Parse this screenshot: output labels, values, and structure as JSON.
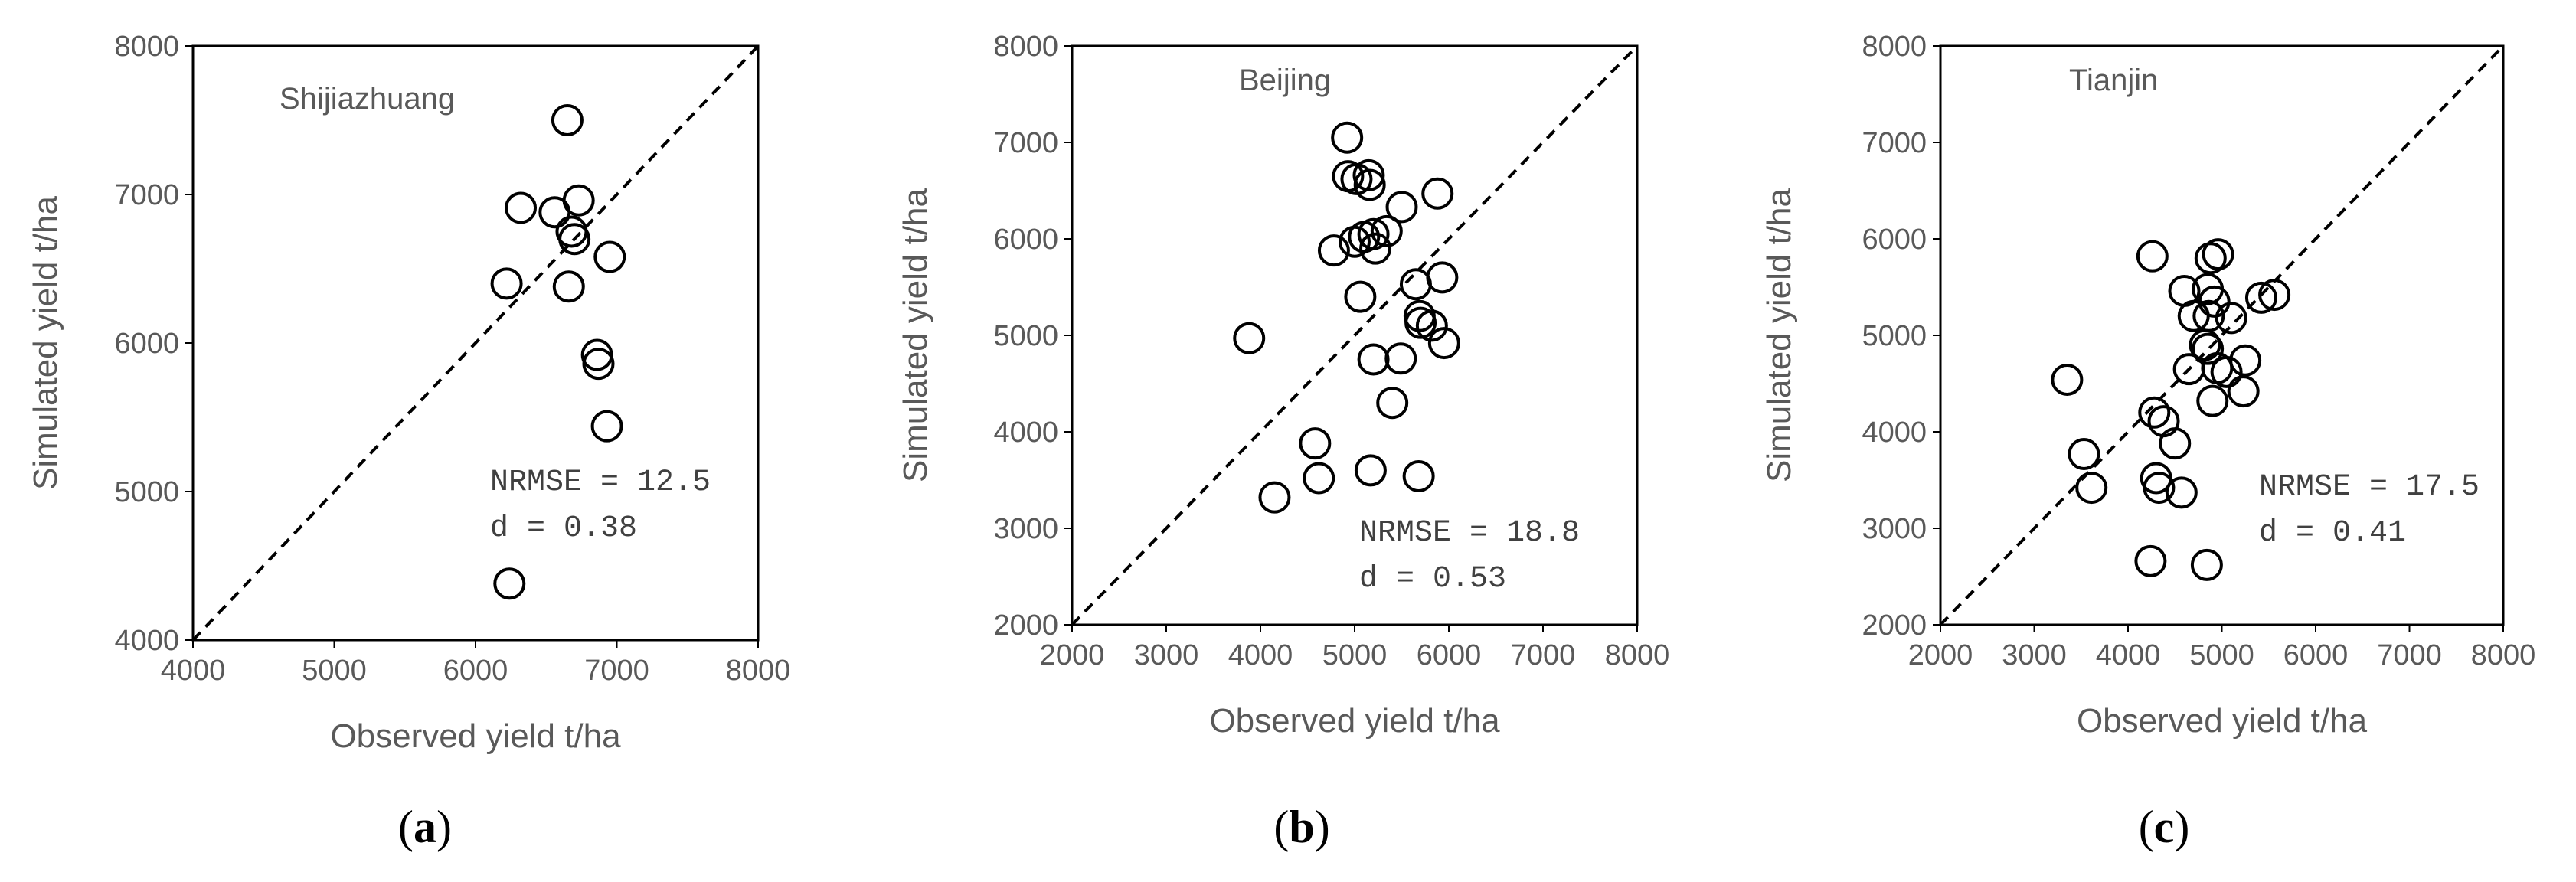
{
  "chart_data": [
    {
      "type": "scatter",
      "panel": "(a)",
      "letter": "a",
      "site": "Shijiazhuang",
      "xlabel": "Observed yield t/ha",
      "ylabel": "Simulated yield t/ha",
      "xlim": [
        4000,
        8000
      ],
      "ylim": [
        4000,
        8000
      ],
      "xticks": [
        4000,
        5000,
        6000,
        7000,
        8000
      ],
      "yticks": [
        4000,
        5000,
        6000,
        7000,
        8000
      ],
      "x_tick_labels": [
        "4000",
        "5000",
        "6000",
        "7000",
        "8000"
      ],
      "y_tick_labels": [
        "4000",
        "5000",
        "6000",
        "7000",
        "8000"
      ],
      "stats": [
        "NRMSE = 12.5",
        "d = 0.38"
      ],
      "grid": false,
      "reference_line": "1:1 dashed",
      "points": [
        {
          "x": 6650,
          "y": 7500
        },
        {
          "x": 6320,
          "y": 6910
        },
        {
          "x": 6560,
          "y": 6880
        },
        {
          "x": 6730,
          "y": 6960
        },
        {
          "x": 6680,
          "y": 6750
        },
        {
          "x": 6700,
          "y": 6700
        },
        {
          "x": 6950,
          "y": 6580
        },
        {
          "x": 6220,
          "y": 6400
        },
        {
          "x": 6660,
          "y": 6380
        },
        {
          "x": 6860,
          "y": 5920
        },
        {
          "x": 6870,
          "y": 5860
        },
        {
          "x": 6930,
          "y": 5440
        },
        {
          "x": 6240,
          "y": 4380
        }
      ]
    },
    {
      "type": "scatter",
      "panel": "(b)",
      "letter": "b",
      "site": "Beijing",
      "xlabel": "Observed yield t/ha",
      "ylabel": "Simulated yield t/ha",
      "xlim": [
        2000,
        8000
      ],
      "ylim": [
        2000,
        8000
      ],
      "xticks": [
        2000,
        3000,
        4000,
        5000,
        6000,
        7000,
        8000
      ],
      "yticks": [
        2000,
        3000,
        4000,
        5000,
        6000,
        7000,
        8000
      ],
      "x_tick_labels": [
        "2000",
        "3000",
        "4000",
        "5000",
        "6000",
        "7000",
        "8000"
      ],
      "y_tick_labels": [
        "2000",
        "3000",
        "4000",
        "5000",
        "6000",
        "7000",
        "8000"
      ],
      "stats": [
        "NRMSE = 18.8",
        "d = 0.53"
      ],
      "grid": false,
      "reference_line": "1:1 dashed",
      "points": [
        {
          "x": 4920,
          "y": 7050
        },
        {
          "x": 4930,
          "y": 6650
        },
        {
          "x": 5020,
          "y": 6620
        },
        {
          "x": 5150,
          "y": 6660
        },
        {
          "x": 5160,
          "y": 6560
        },
        {
          "x": 5880,
          "y": 6470
        },
        {
          "x": 5500,
          "y": 6330
        },
        {
          "x": 5340,
          "y": 6080
        },
        {
          "x": 5000,
          "y": 5970
        },
        {
          "x": 5100,
          "y": 6020
        },
        {
          "x": 5200,
          "y": 6050
        },
        {
          "x": 5220,
          "y": 5900
        },
        {
          "x": 4780,
          "y": 5880
        },
        {
          "x": 5060,
          "y": 5400
        },
        {
          "x": 5930,
          "y": 5600
        },
        {
          "x": 5650,
          "y": 5530
        },
        {
          "x": 5690,
          "y": 5200
        },
        {
          "x": 5700,
          "y": 5130
        },
        {
          "x": 5820,
          "y": 5100
        },
        {
          "x": 5950,
          "y": 4920
        },
        {
          "x": 3880,
          "y": 4970
        },
        {
          "x": 5200,
          "y": 4750
        },
        {
          "x": 5490,
          "y": 4760
        },
        {
          "x": 5400,
          "y": 4300
        },
        {
          "x": 4580,
          "y": 3880
        },
        {
          "x": 4620,
          "y": 3520
        },
        {
          "x": 4150,
          "y": 3320
        },
        {
          "x": 5170,
          "y": 3600
        },
        {
          "x": 5680,
          "y": 3540
        }
      ]
    },
    {
      "type": "scatter",
      "panel": "(c)",
      "letter": "c",
      "site": "Tianjin",
      "xlabel": "Observed yield t/ha",
      "ylabel": "Simulated yield t/ha",
      "xlim": [
        2000,
        8000
      ],
      "ylim": [
        2000,
        8000
      ],
      "xticks": [
        2000,
        3000,
        4000,
        5000,
        6000,
        7000,
        8000
      ],
      "yticks": [
        2000,
        3000,
        4000,
        5000,
        6000,
        7000,
        8000
      ],
      "x_tick_labels": [
        "2000",
        "3000",
        "4000",
        "5000",
        "6000",
        "7000",
        "8000"
      ],
      "y_tick_labels": [
        "2000",
        "3000",
        "4000",
        "5000",
        "6000",
        "7000",
        "8000"
      ],
      "stats": [
        "NRMSE = 17.5",
        "d = 0.41"
      ],
      "grid": false,
      "reference_line": "1:1 dashed",
      "points": [
        {
          "x": 4260,
          "y": 5820
        },
        {
          "x": 4880,
          "y": 5800
        },
        {
          "x": 4960,
          "y": 5840
        },
        {
          "x": 4600,
          "y": 5460
        },
        {
          "x": 4850,
          "y": 5480
        },
        {
          "x": 4920,
          "y": 5350
        },
        {
          "x": 4700,
          "y": 5200
        },
        {
          "x": 4860,
          "y": 5200
        },
        {
          "x": 5100,
          "y": 5180
        },
        {
          "x": 5420,
          "y": 5390
        },
        {
          "x": 5560,
          "y": 5420
        },
        {
          "x": 4820,
          "y": 4900
        },
        {
          "x": 4850,
          "y": 4860
        },
        {
          "x": 4650,
          "y": 4650
        },
        {
          "x": 4950,
          "y": 4660
        },
        {
          "x": 5050,
          "y": 4620
        },
        {
          "x": 5250,
          "y": 4740
        },
        {
          "x": 5230,
          "y": 4420
        },
        {
          "x": 4900,
          "y": 4320
        },
        {
          "x": 3350,
          "y": 4540
        },
        {
          "x": 4280,
          "y": 4200
        },
        {
          "x": 4380,
          "y": 4110
        },
        {
          "x": 4500,
          "y": 3880
        },
        {
          "x": 3530,
          "y": 3770
        },
        {
          "x": 3610,
          "y": 3420
        },
        {
          "x": 4300,
          "y": 3520
        },
        {
          "x": 4330,
          "y": 3420
        },
        {
          "x": 4570,
          "y": 3370
        },
        {
          "x": 4240,
          "y": 2660
        },
        {
          "x": 4840,
          "y": 2620
        }
      ]
    }
  ]
}
